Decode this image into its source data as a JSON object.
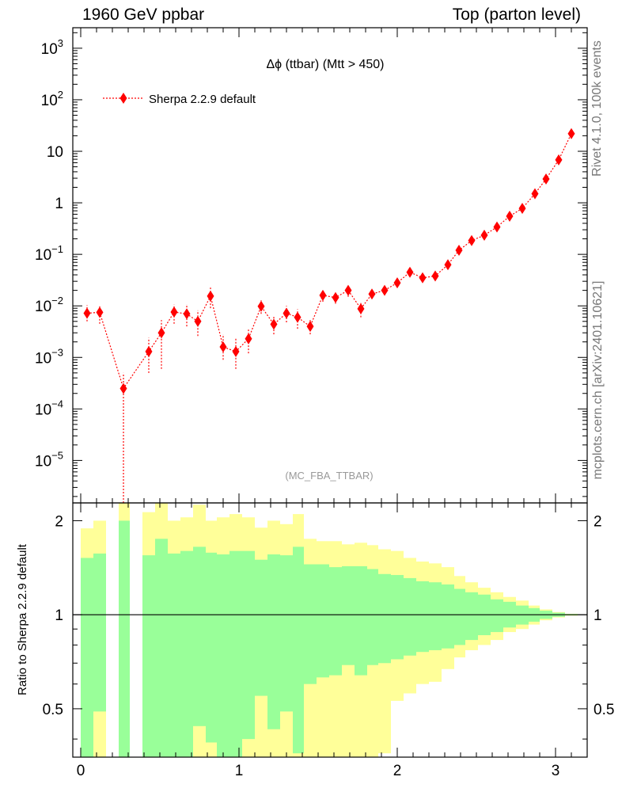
{
  "header": {
    "left": "1960 GeV ppbar",
    "right": "Top (parton level)"
  },
  "side": {
    "rivet": "Rivet 4.1.0,  100k events",
    "mcplots": "mcplots.cern.ch [arXiv:2401.10621]"
  },
  "chart_data": {
    "type": "scatter",
    "title": "Δϕ (ttbar) (Mtt > 450)",
    "analysis_label": "(MC_FBA_TTBAR)",
    "legend": [
      {
        "name": "Sherpa 2.2.9 default",
        "color": "#ff0000",
        "marker": "diamond",
        "line": "dotted"
      }
    ],
    "main_yscale": "log",
    "main_ylim": [
      1.5e-06,
      2500
    ],
    "main_yticks": [
      {
        "value": 1e-05,
        "base": "10",
        "exp": "−5"
      },
      {
        "value": 0.0001,
        "base": "10",
        "exp": "−4"
      },
      {
        "value": 0.001,
        "base": "10",
        "exp": "−3"
      },
      {
        "value": 0.01,
        "base": "10",
        "exp": "−2"
      },
      {
        "value": 0.1,
        "base": "10",
        "exp": "−1"
      },
      {
        "value": 1,
        "base": "1",
        "exp": ""
      },
      {
        "value": 10,
        "base": "10",
        "exp": ""
      },
      {
        "value": 100,
        "base": "10",
        "exp": "2"
      },
      {
        "value": 1000,
        "base": "10",
        "exp": "3"
      }
    ],
    "xlim": [
      -0.05,
      3.2
    ],
    "xticks": [
      0,
      1,
      2,
      3
    ],
    "xtick_labels": [
      "0",
      "1",
      "2",
      "3"
    ],
    "bin_edges": [
      0,
      0.0785,
      0.157,
      0.2355,
      0.314,
      0.3925,
      0.471,
      0.5495,
      0.628,
      0.7065,
      0.785,
      0.8635,
      0.942,
      1.0205,
      1.099,
      1.1775,
      1.256,
      1.3345,
      1.413,
      1.4915,
      1.57,
      1.6485,
      1.727,
      1.8055,
      1.884,
      1.9625,
      2.041,
      2.1195,
      2.198,
      2.2765,
      2.355,
      2.4335,
      2.512,
      2.5905,
      2.669,
      2.7475,
      2.826,
      2.9045,
      2.983,
      3.0615,
      3.14
    ],
    "points": [
      {
        "x": 0.04,
        "y": 0.0072,
        "lo": 0.005,
        "hi": 0.0104
      },
      {
        "x": 0.12,
        "y": 0.0075,
        "lo": 0.0045,
        "hi": 0.0105
      },
      {
        "x": 0.27,
        "y": 0.00025,
        "lo": 1e-07,
        "hi": 0.0005
      },
      {
        "x": 0.43,
        "y": 0.0013,
        "lo": 0.0005,
        "hi": 0.0024
      },
      {
        "x": 0.51,
        "y": 0.003,
        "lo": 0.0006,
        "hi": 0.0053
      },
      {
        "x": 0.59,
        "y": 0.0076,
        "lo": 0.0045,
        "hi": 0.0106
      },
      {
        "x": 0.67,
        "y": 0.007,
        "lo": 0.004,
        "hi": 0.0108
      },
      {
        "x": 0.74,
        "y": 0.005,
        "lo": 0.0026,
        "hi": 0.0082
      },
      {
        "x": 0.82,
        "y": 0.0155,
        "lo": 0.009,
        "hi": 0.024
      },
      {
        "x": 0.9,
        "y": 0.0016,
        "lo": 0.0009,
        "hi": 0.0028
      },
      {
        "x": 0.98,
        "y": 0.0013,
        "lo": 0.0006,
        "hi": 0.0023
      },
      {
        "x": 1.06,
        "y": 0.0023,
        "lo": 0.0012,
        "hi": 0.0036
      },
      {
        "x": 1.14,
        "y": 0.0098,
        "lo": 0.007,
        "hi": 0.0128
      },
      {
        "x": 1.22,
        "y": 0.0044,
        "lo": 0.0028,
        "hi": 0.0064
      },
      {
        "x": 1.3,
        "y": 0.0072,
        "lo": 0.0048,
        "hi": 0.01
      },
      {
        "x": 1.37,
        "y": 0.006,
        "lo": 0.0036,
        "hi": 0.0086
      },
      {
        "x": 1.45,
        "y": 0.004,
        "lo": 0.0028,
        "hi": 0.0056
      },
      {
        "x": 1.53,
        "y": 0.016,
        "lo": 0.012,
        "hi": 0.02
      },
      {
        "x": 1.61,
        "y": 0.0145,
        "lo": 0.011,
        "hi": 0.0185
      },
      {
        "x": 1.69,
        "y": 0.02,
        "lo": 0.015,
        "hi": 0.026
      },
      {
        "x": 1.77,
        "y": 0.0088,
        "lo": 0.006,
        "hi": 0.0118
      },
      {
        "x": 1.84,
        "y": 0.017,
        "lo": 0.014,
        "hi": 0.021
      },
      {
        "x": 1.92,
        "y": 0.02,
        "lo": 0.0165,
        "hi": 0.024
      },
      {
        "x": 2.0,
        "y": 0.028,
        "lo": 0.024,
        "hi": 0.033
      },
      {
        "x": 2.08,
        "y": 0.045,
        "lo": 0.04,
        "hi": 0.051
      },
      {
        "x": 2.16,
        "y": 0.035,
        "lo": 0.031,
        "hi": 0.04
      },
      {
        "x": 2.24,
        "y": 0.038,
        "lo": 0.034,
        "hi": 0.043
      },
      {
        "x": 2.32,
        "y": 0.063,
        "lo": 0.058,
        "hi": 0.069
      },
      {
        "x": 2.39,
        "y": 0.12,
        "lo": 0.112,
        "hi": 0.128
      },
      {
        "x": 2.47,
        "y": 0.185,
        "lo": 0.175,
        "hi": 0.196
      },
      {
        "x": 2.55,
        "y": 0.235,
        "lo": 0.224,
        "hi": 0.247
      },
      {
        "x": 2.63,
        "y": 0.34,
        "lo": 0.326,
        "hi": 0.354
      },
      {
        "x": 2.71,
        "y": 0.55,
        "lo": 0.53,
        "hi": 0.57
      },
      {
        "x": 2.79,
        "y": 0.78,
        "lo": 0.755,
        "hi": 0.805
      },
      {
        "x": 2.87,
        "y": 1.5,
        "lo": 1.46,
        "hi": 1.54
      },
      {
        "x": 2.94,
        "y": 2.9,
        "lo": 2.84,
        "hi": 2.96
      },
      {
        "x": 3.02,
        "y": 6.8,
        "lo": 6.7,
        "hi": 6.9
      },
      {
        "x": 3.1,
        "y": 22,
        "lo": 21.8,
        "hi": 22.2
      }
    ],
    "ratio": {
      "ylabel": "Ratio to Sherpa 2.2.9 default",
      "ylim": [
        0.35,
        2.28
      ],
      "yticks": [
        0.5,
        1,
        2
      ],
      "ytick_labels": [
        "0.5",
        "1",
        "2"
      ],
      "bands": [
        {
          "x0": 0.0,
          "x1": 0.08,
          "g": [
            0.0,
            1.52
          ],
          "y": [
            0.0,
            1.89
          ]
        },
        {
          "x0": 0.08,
          "x1": 0.16,
          "g": [
            0.49,
            1.57
          ],
          "y": [
            0.0,
            2.0
          ]
        },
        {
          "x0": 0.24,
          "x1": 0.31,
          "g": [
            0.0,
            2.0
          ],
          "y": [
            0.0,
            2.35
          ]
        },
        {
          "x0": 0.39,
          "x1": 0.47,
          "g": [
            0.0,
            1.55
          ],
          "y": [
            0.0,
            2.13
          ]
        },
        {
          "x0": 0.47,
          "x1": 0.55,
          "g": [
            0.0,
            1.75
          ],
          "y": [
            0.0,
            2.35
          ]
        },
        {
          "x0": 0.55,
          "x1": 0.63,
          "g": [
            0.0,
            1.57
          ],
          "y": [
            0.0,
            2.0
          ]
        },
        {
          "x0": 0.63,
          "x1": 0.71,
          "g": [
            0.0,
            1.6
          ],
          "y": [
            0.0,
            2.05
          ]
        },
        {
          "x0": 0.71,
          "x1": 0.79,
          "g": [
            0.44,
            1.65
          ],
          "y": [
            0.0,
            2.25
          ]
        },
        {
          "x0": 0.79,
          "x1": 0.86,
          "g": [
            0.39,
            1.58
          ],
          "y": [
            0.0,
            2.0
          ]
        },
        {
          "x0": 0.86,
          "x1": 0.94,
          "g": [
            0.35,
            1.56
          ],
          "y": [
            0.0,
            2.05
          ]
        },
        {
          "x0": 0.94,
          "x1": 1.02,
          "g": [
            0.35,
            1.6
          ],
          "y": [
            0.0,
            2.1
          ]
        },
        {
          "x0": 1.02,
          "x1": 1.1,
          "g": [
            0.4,
            1.6
          ],
          "y": [
            0.0,
            2.05
          ]
        },
        {
          "x0": 1.1,
          "x1": 1.18,
          "g": [
            0.55,
            1.5
          ],
          "y": [
            0.0,
            1.9
          ]
        },
        {
          "x0": 1.18,
          "x1": 1.26,
          "g": [
            0.43,
            1.56
          ],
          "y": [
            0.0,
            2.0
          ]
        },
        {
          "x0": 1.26,
          "x1": 1.34,
          "g": [
            0.49,
            1.55
          ],
          "y": [
            0.0,
            1.95
          ]
        },
        {
          "x0": 1.34,
          "x1": 1.41,
          "g": [
            0.36,
            1.65
          ],
          "y": [
            0.0,
            2.1
          ]
        },
        {
          "x0": 1.41,
          "x1": 1.49,
          "g": [
            0.6,
            1.45
          ],
          "y": [
            0.0,
            1.75
          ]
        },
        {
          "x0": 1.49,
          "x1": 1.57,
          "g": [
            0.63,
            1.45
          ],
          "y": [
            0.0,
            1.72
          ]
        },
        {
          "x0": 1.57,
          "x1": 1.65,
          "g": [
            0.64,
            1.42
          ],
          "y": [
            0.0,
            1.72
          ]
        },
        {
          "x0": 1.65,
          "x1": 1.73,
          "g": [
            0.69,
            1.43
          ],
          "y": [
            0.0,
            1.68
          ]
        },
        {
          "x0": 1.73,
          "x1": 1.81,
          "g": [
            0.64,
            1.43
          ],
          "y": [
            0.0,
            1.7
          ]
        },
        {
          "x0": 1.81,
          "x1": 1.88,
          "g": [
            0.69,
            1.4
          ],
          "y": [
            0.35,
            1.67
          ]
        },
        {
          "x0": 1.88,
          "x1": 1.96,
          "g": [
            0.7,
            1.35
          ],
          "y": [
            0.36,
            1.62
          ]
        },
        {
          "x0": 1.96,
          "x1": 2.04,
          "g": [
            0.72,
            1.34
          ],
          "y": [
            0.53,
            1.6
          ]
        },
        {
          "x0": 2.04,
          "x1": 2.12,
          "g": [
            0.74,
            1.31
          ],
          "y": [
            0.56,
            1.52
          ]
        },
        {
          "x0": 2.12,
          "x1": 2.2,
          "g": [
            0.76,
            1.28
          ],
          "y": [
            0.6,
            1.48
          ]
        },
        {
          "x0": 2.2,
          "x1": 2.28,
          "g": [
            0.77,
            1.27
          ],
          "y": [
            0.61,
            1.46
          ]
        },
        {
          "x0": 2.28,
          "x1": 2.36,
          "g": [
            0.78,
            1.25
          ],
          "y": [
            0.67,
            1.42
          ]
        },
        {
          "x0": 2.36,
          "x1": 2.43,
          "g": [
            0.8,
            1.21
          ],
          "y": [
            0.73,
            1.33
          ]
        },
        {
          "x0": 2.43,
          "x1": 2.51,
          "g": [
            0.83,
            1.18
          ],
          "y": [
            0.77,
            1.27
          ]
        },
        {
          "x0": 2.51,
          "x1": 2.59,
          "g": [
            0.86,
            1.16
          ],
          "y": [
            0.8,
            1.22
          ]
        },
        {
          "x0": 2.59,
          "x1": 2.67,
          "g": [
            0.88,
            1.12
          ],
          "y": [
            0.83,
            1.18
          ]
        },
        {
          "x0": 2.67,
          "x1": 2.75,
          "g": [
            0.91,
            1.1
          ],
          "y": [
            0.88,
            1.14
          ]
        },
        {
          "x0": 2.75,
          "x1": 2.83,
          "g": [
            0.93,
            1.07
          ],
          "y": [
            0.9,
            1.11
          ]
        },
        {
          "x0": 2.83,
          "x1": 2.9,
          "g": [
            0.95,
            1.05
          ],
          "y": [
            0.93,
            1.07
          ]
        },
        {
          "x0": 2.9,
          "x1": 2.98,
          "g": [
            0.97,
            1.03
          ],
          "y": [
            0.96,
            1.04
          ]
        },
        {
          "x0": 2.98,
          "x1": 3.06,
          "g": [
            0.985,
            1.015
          ],
          "y": [
            0.98,
            1.02
          ]
        },
        {
          "x0": 3.06,
          "x1": 3.14,
          "g": [
            0.995,
            1.005
          ],
          "y": [
            0.993,
            1.007
          ]
        }
      ]
    }
  }
}
